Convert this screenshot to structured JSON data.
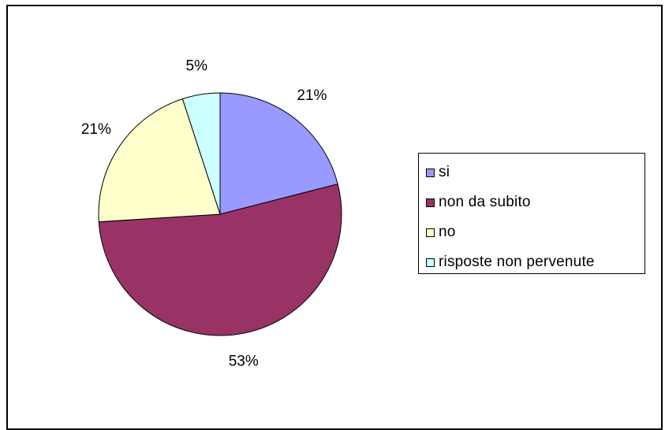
{
  "chart_data": {
    "type": "pie",
    "title": "",
    "slices": [
      {
        "name": "si",
        "value": 21,
        "label": "21%",
        "color": "#9999FF"
      },
      {
        "name": "non da subito",
        "value": 53,
        "label": "53%",
        "color": "#993366"
      },
      {
        "name": "no",
        "value": 21,
        "label": "21%",
        "color": "#FFFFCC"
      },
      {
        "name": "risposte non pervenute",
        "value": 5,
        "label": "5%",
        "color": "#CCFFFF"
      }
    ],
    "legend_position": "right"
  },
  "legend": {
    "items": [
      {
        "label": "si",
        "color": "#9999FF"
      },
      {
        "label": "non da subito",
        "color": "#993366"
      },
      {
        "label": "no",
        "color": "#FFFFCC"
      },
      {
        "label": "risposte non pervenute",
        "color": "#CCFFFF"
      }
    ]
  }
}
